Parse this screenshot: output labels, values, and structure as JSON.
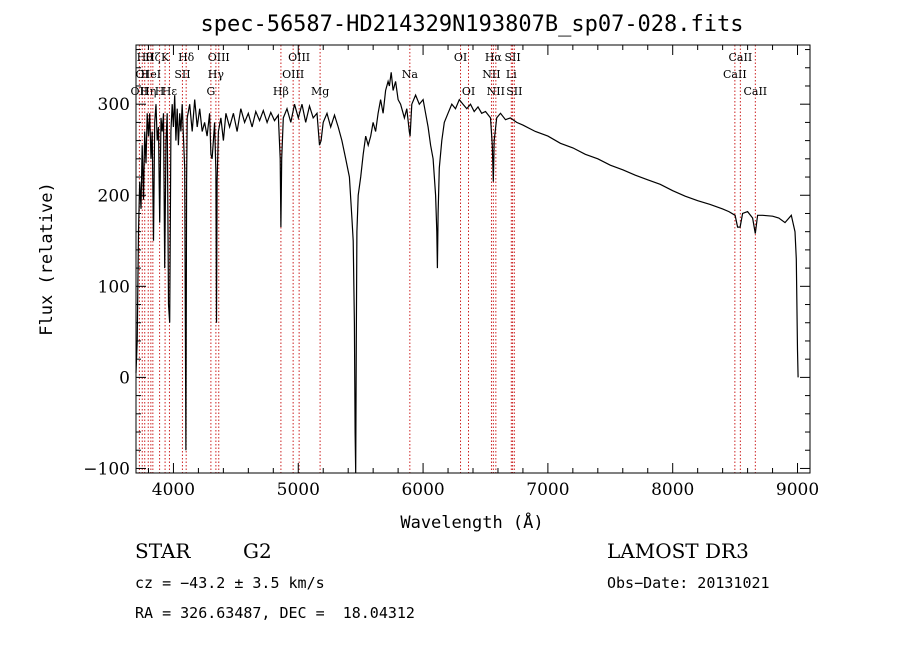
{
  "chart_data": {
    "type": "line",
    "title": "spec-56587-HD214329N193807B_sp07-028.fits",
    "xlabel": "Wavelength (Å)",
    "ylabel": "Flux (relative)",
    "xlim": [
      3700,
      9100
    ],
    "ylim": [
      -105,
      365
    ],
    "xticks": [
      4000,
      5000,
      6000,
      7000,
      8000,
      9000
    ],
    "yticks": [
      -100,
      0,
      100,
      200,
      300
    ],
    "grid": false,
    "series_color": "#000000",
    "line_marker_color": "#cc2222",
    "spectrum_points": [
      [
        3700,
        5
      ],
      [
        3710,
        40
      ],
      [
        3720,
        160
      ],
      [
        3730,
        215
      ],
      [
        3740,
        185
      ],
      [
        3750,
        255
      ],
      [
        3760,
        195
      ],
      [
        3770,
        270
      ],
      [
        3780,
        235
      ],
      [
        3790,
        290
      ],
      [
        3800,
        265
      ],
      [
        3810,
        290
      ],
      [
        3820,
        240
      ],
      [
        3830,
        270
      ],
      [
        3840,
        150
      ],
      [
        3850,
        280
      ],
      [
        3860,
        300
      ],
      [
        3870,
        260
      ],
      [
        3880,
        275
      ],
      [
        3890,
        170
      ],
      [
        3900,
        285
      ],
      [
        3910,
        270
      ],
      [
        3920,
        290
      ],
      [
        3930,
        120
      ],
      [
        3940,
        260
      ],
      [
        3950,
        290
      ],
      [
        3960,
        80
      ],
      [
        3970,
        60
      ],
      [
        3980,
        270
      ],
      [
        3990,
        300
      ],
      [
        4000,
        275
      ],
      [
        4010,
        310
      ],
      [
        4020,
        260
      ],
      [
        4030,
        295
      ],
      [
        4040,
        255
      ],
      [
        4050,
        290
      ],
      [
        4060,
        270
      ],
      [
        4070,
        300
      ],
      [
        4080,
        265
      ],
      [
        4090,
        230
      ],
      [
        4100,
        -80
      ],
      [
        4105,
        215
      ],
      [
        4110,
        285
      ],
      [
        4130,
        300
      ],
      [
        4150,
        270
      ],
      [
        4170,
        305
      ],
      [
        4190,
        275
      ],
      [
        4210,
        295
      ],
      [
        4230,
        270
      ],
      [
        4250,
        280
      ],
      [
        4270,
        265
      ],
      [
        4290,
        290
      ],
      [
        4300,
        245
      ],
      [
        4310,
        240
      ],
      [
        4320,
        260
      ],
      [
        4330,
        280
      ],
      [
        4340,
        225
      ],
      [
        4345,
        60
      ],
      [
        4350,
        215
      ],
      [
        4360,
        270
      ],
      [
        4380,
        285
      ],
      [
        4400,
        260
      ],
      [
        4420,
        290
      ],
      [
        4450,
        275
      ],
      [
        4480,
        290
      ],
      [
        4510,
        270
      ],
      [
        4540,
        295
      ],
      [
        4570,
        280
      ],
      [
        4600,
        290
      ],
      [
        4630,
        275
      ],
      [
        4660,
        292
      ],
      [
        4690,
        282
      ],
      [
        4720,
        293
      ],
      [
        4750,
        280
      ],
      [
        4780,
        291
      ],
      [
        4810,
        282
      ],
      [
        4840,
        288
      ],
      [
        4855,
        240
      ],
      [
        4861,
        165
      ],
      [
        4867,
        240
      ],
      [
        4880,
        285
      ],
      [
        4910,
        295
      ],
      [
        4940,
        280
      ],
      [
        4970,
        300
      ],
      [
        5000,
        285
      ],
      [
        5030,
        300
      ],
      [
        5060,
        280
      ],
      [
        5090,
        298
      ],
      [
        5120,
        285
      ],
      [
        5150,
        290
      ],
      [
        5170,
        255
      ],
      [
        5183,
        260
      ],
      [
        5200,
        280
      ],
      [
        5230,
        290
      ],
      [
        5260,
        275
      ],
      [
        5290,
        288
      ],
      [
        5320,
        275
      ],
      [
        5350,
        260
      ],
      [
        5380,
        240
      ],
      [
        5410,
        220
      ],
      [
        5430,
        175
      ],
      [
        5440,
        150
      ],
      [
        5450,
        60
      ],
      [
        5455,
        -60
      ],
      [
        5460,
        -105
      ],
      [
        5465,
        40
      ],
      [
        5470,
        160
      ],
      [
        5480,
        200
      ],
      [
        5500,
        220
      ],
      [
        5520,
        245
      ],
      [
        5540,
        265
      ],
      [
        5560,
        255
      ],
      [
        5580,
        265
      ],
      [
        5600,
        280
      ],
      [
        5620,
        270
      ],
      [
        5640,
        290
      ],
      [
        5660,
        305
      ],
      [
        5680,
        290
      ],
      [
        5700,
        315
      ],
      [
        5720,
        325
      ],
      [
        5730,
        320
      ],
      [
        5745,
        335
      ],
      [
        5760,
        315
      ],
      [
        5780,
        325
      ],
      [
        5800,
        305
      ],
      [
        5820,
        300
      ],
      [
        5850,
        285
      ],
      [
        5870,
        295
      ],
      [
        5890,
        270
      ],
      [
        5896,
        265
      ],
      [
        5910,
        300
      ],
      [
        5940,
        310
      ],
      [
        5970,
        300
      ],
      [
        6000,
        305
      ],
      [
        6020,
        290
      ],
      [
        6040,
        275
      ],
      [
        6060,
        255
      ],
      [
        6080,
        240
      ],
      [
        6100,
        200
      ],
      [
        6110,
        160
      ],
      [
        6115,
        120
      ],
      [
        6120,
        180
      ],
      [
        6130,
        230
      ],
      [
        6150,
        260
      ],
      [
        6170,
        280
      ],
      [
        6200,
        290
      ],
      [
        6230,
        300
      ],
      [
        6260,
        295
      ],
      [
        6290,
        305
      ],
      [
        6320,
        300
      ],
      [
        6350,
        295
      ],
      [
        6380,
        300
      ],
      [
        6410,
        292
      ],
      [
        6440,
        297
      ],
      [
        6470,
        290
      ],
      [
        6500,
        292
      ],
      [
        6540,
        285
      ],
      [
        6555,
        255
      ],
      [
        6563,
        215
      ],
      [
        6570,
        260
      ],
      [
        6590,
        285
      ],
      [
        6620,
        290
      ],
      [
        6660,
        283
      ],
      [
        6700,
        285
      ],
      [
        6750,
        280
      ],
      [
        6800,
        277
      ],
      [
        6900,
        270
      ],
      [
        7000,
        265
      ],
      [
        7100,
        257
      ],
      [
        7200,
        252
      ],
      [
        7300,
        245
      ],
      [
        7400,
        240
      ],
      [
        7500,
        233
      ],
      [
        7600,
        228
      ],
      [
        7700,
        222
      ],
      [
        7800,
        217
      ],
      [
        7900,
        212
      ],
      [
        8000,
        205
      ],
      [
        8100,
        199
      ],
      [
        8200,
        194
      ],
      [
        8300,
        190
      ],
      [
        8400,
        185
      ],
      [
        8450,
        182
      ],
      [
        8500,
        178
      ],
      [
        8520,
        165
      ],
      [
        8540,
        165
      ],
      [
        8560,
        180
      ],
      [
        8600,
        182
      ],
      [
        8640,
        175
      ],
      [
        8662,
        158
      ],
      [
        8680,
        178
      ],
      [
        8720,
        178
      ],
      [
        8800,
        177
      ],
      [
        8850,
        175
      ],
      [
        8900,
        170
      ],
      [
        8950,
        178
      ],
      [
        8980,
        160
      ],
      [
        8990,
        130
      ],
      [
        9000,
        30
      ],
      [
        9005,
        0
      ]
    ],
    "spectral_lines": [
      {
        "x": 3727,
        "label": "OII",
        "row": 3
      },
      {
        "x": 3750,
        "label": "OI",
        "row": 2
      },
      {
        "x": 3770,
        "label": "Hθ",
        "row": 1
      },
      {
        "x": 3798,
        "label": "Hη",
        "row": 3
      },
      {
        "x": 3819,
        "label": "HeI",
        "row": 2
      },
      {
        "x": 3835,
        "label": "Hζ",
        "row": 1
      },
      {
        "x": 3889,
        "label": "H",
        "row": 3
      },
      {
        "x": 3933,
        "label": "K",
        "row": 1
      },
      {
        "x": 3968,
        "label": "Hε",
        "row": 3
      },
      {
        "x": 4072,
        "label": "SII",
        "row": 2
      },
      {
        "x": 4102,
        "label": "Hδ",
        "row": 1
      },
      {
        "x": 4300,
        "label": "G",
        "row": 3
      },
      {
        "x": 4340,
        "label": "Hγ",
        "row": 2
      },
      {
        "x": 4363,
        "label": "OIII",
        "row": 1
      },
      {
        "x": 4861,
        "label": "Hβ",
        "row": 3
      },
      {
        "x": 4959,
        "label": "OIII",
        "row": 2
      },
      {
        "x": 5007,
        "label": "OIII",
        "row": 1
      },
      {
        "x": 5175,
        "label": "Mg",
        "row": 3
      },
      {
        "x": 5894,
        "label": "Na",
        "row": 2
      },
      {
        "x": 6300,
        "label": "OI",
        "row": 1
      },
      {
        "x": 6364,
        "label": "OI",
        "row": 3
      },
      {
        "x": 6548,
        "label": "NII",
        "row": 2
      },
      {
        "x": 6563,
        "label": "Hα",
        "row": 1
      },
      {
        "x": 6583,
        "label": "NII",
        "row": 3
      },
      {
        "x": 6707,
        "label": "Li",
        "row": 2
      },
      {
        "x": 6717,
        "label": "SII",
        "row": 1
      },
      {
        "x": 6731,
        "label": "SII",
        "row": 3
      },
      {
        "x": 8498,
        "label": "CaII",
        "row": 2
      },
      {
        "x": 8542,
        "label": "CaII",
        "row": 1
      },
      {
        "x": 8662,
        "label": "CaII",
        "row": 3
      }
    ]
  },
  "info": {
    "class_label": "STAR",
    "subclass": "G2",
    "survey": "LAMOST DR3",
    "cz": "cz = −43.2 ± 3.5 km/s",
    "obs_date": "Obs−Date: 20131021",
    "coords": "RA = 326.63487, DEC =  18.04312"
  }
}
